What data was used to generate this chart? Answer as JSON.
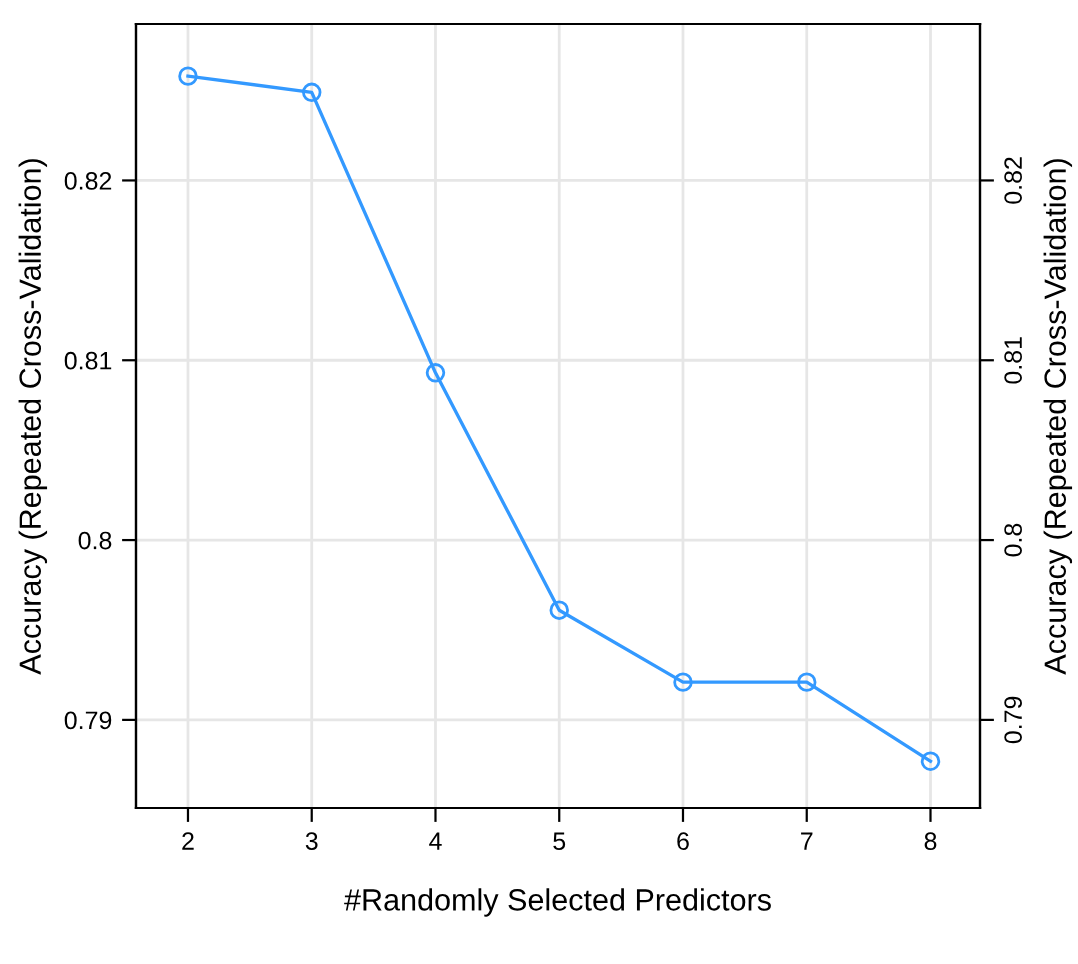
{
  "chart_data": {
    "type": "line",
    "xlabel": "#Randomly Selected Predictors",
    "ylabel": "Accuracy (Repeated Cross-Validation)",
    "y2label": "Accuracy (Repeated Cross-Validation)",
    "x": [
      2,
      3,
      4,
      5,
      6,
      7,
      8
    ],
    "series": [
      {
        "color": "#3399ff",
        "values": [
          0.8258,
          0.8249,
          0.8093,
          0.7961,
          0.7921,
          0.7921,
          0.7877
        ]
      }
    ],
    "xlim": [
      1.58,
      8.4
    ],
    "xticks": [
      2,
      3,
      4,
      5,
      6,
      7,
      8
    ],
    "ylim": [
      0.7851,
      0.8287
    ],
    "yticks": [
      0.79,
      0.8,
      0.81,
      0.82
    ],
    "y2lim": [
      0.7851,
      0.8287
    ],
    "y2ticks": [
      0.79,
      0.8,
      0.81,
      0.82
    ],
    "grid": true,
    "marker": "circle",
    "line_style": "solid"
  }
}
